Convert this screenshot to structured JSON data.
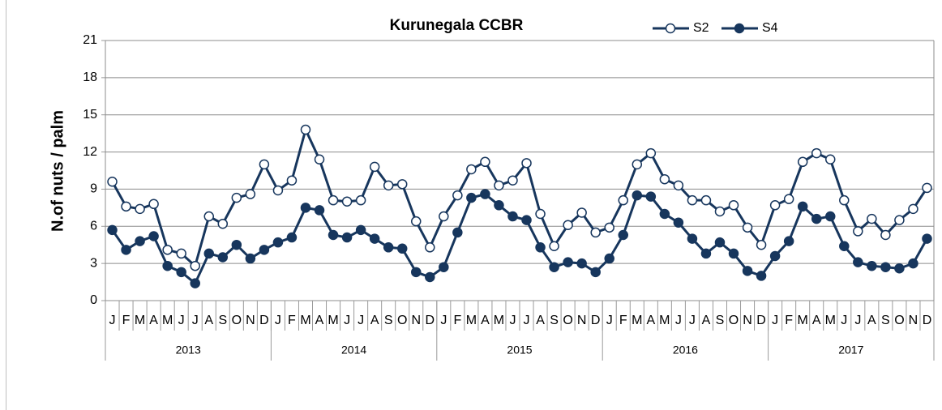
{
  "chart_data": {
    "type": "line",
    "title": "Kurunegala CCBR",
    "y_label": "N.of nuts / palm",
    "categories": [
      "J",
      "F",
      "M",
      "A",
      "M",
      "J",
      "J",
      "A",
      "S",
      "O",
      "N",
      "D",
      "J",
      "F",
      "M",
      "A",
      "M",
      "J",
      "J",
      "A",
      "S",
      "O",
      "N",
      "D",
      "J",
      "F",
      "M",
      "A",
      "M",
      "J",
      "J",
      "A",
      "S",
      "O",
      "N",
      "D",
      "J",
      "F",
      "M",
      "A",
      "M",
      "J",
      "J",
      "A",
      "S",
      "O",
      "N",
      "D",
      "J",
      "F",
      "M",
      "A",
      "M",
      "J",
      "J",
      "A",
      "S",
      "O",
      "N",
      "D"
    ],
    "groups": [
      "2013",
      "2014",
      "2015",
      "2016",
      "2017"
    ],
    "series": [
      {
        "name": "S2",
        "color": "#17365d",
        "marker": "open",
        "values": [
          9.6,
          7.6,
          7.4,
          7.8,
          4.1,
          3.8,
          2.8,
          6.8,
          6.2,
          8.3,
          8.6,
          11.0,
          8.9,
          9.7,
          13.8,
          11.4,
          8.1,
          8.0,
          8.1,
          10.8,
          9.3,
          9.4,
          6.4,
          4.3,
          6.8,
          8.5,
          10.6,
          11.2,
          9.3,
          9.7,
          11.1,
          7.0,
          4.4,
          6.1,
          7.1,
          5.5,
          5.9,
          8.1,
          11.0,
          11.9,
          9.8,
          9.3,
          8.1,
          8.1,
          7.2,
          7.7,
          5.9,
          4.5,
          7.7,
          8.2,
          11.2,
          11.9,
          11.4,
          8.1,
          5.6,
          6.6,
          5.3,
          6.5,
          7.4,
          9.1
        ]
      },
      {
        "name": "S4",
        "color": "#17365d",
        "marker": "filled",
        "values": [
          5.7,
          4.1,
          4.8,
          5.2,
          2.8,
          2.3,
          1.4,
          3.8,
          3.5,
          4.5,
          3.4,
          4.1,
          4.7,
          5.1,
          7.5,
          7.3,
          5.3,
          5.1,
          5.7,
          5.0,
          4.3,
          4.2,
          2.3,
          1.9,
          2.7,
          5.5,
          8.3,
          8.6,
          7.7,
          6.8,
          6.5,
          4.3,
          2.7,
          3.1,
          3.0,
          2.3,
          3.4,
          5.3,
          8.5,
          8.4,
          7.0,
          6.3,
          5.0,
          3.8,
          4.7,
          3.8,
          2.4,
          2.0,
          3.6,
          4.8,
          7.6,
          6.6,
          6.8,
          4.4,
          3.1,
          2.8,
          2.7,
          2.6,
          3.0,
          5.0
        ]
      }
    ],
    "ylim": [
      0,
      21
    ],
    "yticks": [
      0,
      3,
      6,
      9,
      12,
      15,
      18,
      21
    ],
    "grid": true,
    "legend": "top-right"
  }
}
